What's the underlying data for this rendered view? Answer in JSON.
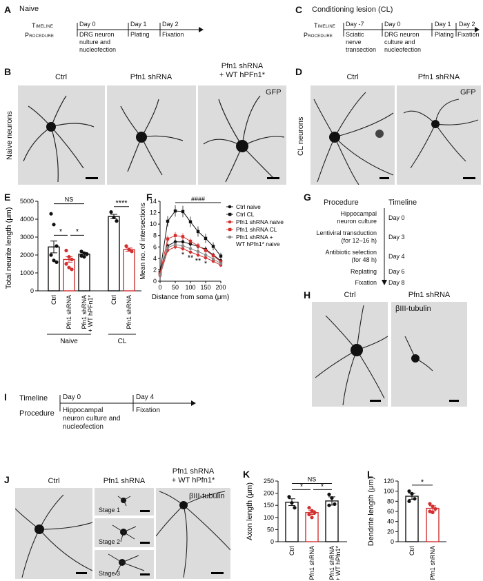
{
  "panels": {
    "A": {
      "letter": "A",
      "title": "Naive",
      "timeline_label": "Timeline",
      "procedure_label": "Procedure",
      "days": [
        "Day 0",
        "Day 1",
        "Day 2"
      ],
      "procedures": [
        "DRG neuron\nnulture and\nnucleofection",
        "Plating",
        "Fixation"
      ]
    },
    "B": {
      "letter": "B",
      "row_label": "Naive neurons",
      "cols": [
        "Ctrl",
        "Pfn1 shRNA",
        "Pfn1 shRNA\n+ WT hPFn1*"
      ],
      "stain": "GFP"
    },
    "C": {
      "letter": "C",
      "title": "Conditioning lesion (CL)",
      "timeline_label": "Timeline",
      "procedure_label": "Procedure",
      "days": [
        "Day -7",
        "Day 0",
        "Day 1",
        "Day 2"
      ],
      "procedures": [
        "Sciatic\nnerve\ntransection",
        "DRG neuron\nculture and\nnucleofection",
        "Plating",
        "Fixation"
      ]
    },
    "D": {
      "letter": "D",
      "row_label": "CL neurons",
      "cols": [
        "Ctrl",
        "Pfn1 shRNA"
      ],
      "stain": "GFP"
    },
    "E": {
      "letter": "E",
      "ylabel": "Total neurite length (μm)",
      "groups": [
        "Naive",
        "CL"
      ],
      "sig": [
        "NS",
        "*",
        "*",
        "****"
      ]
    },
    "F": {
      "letter": "F",
      "ylabel": "Mean no. of intersections",
      "xlabel": "Distance from soma (μm)",
      "sig_top": "####",
      "stars": [
        "*",
        "**",
        "**",
        "*"
      ]
    },
    "G": {
      "letter": "G",
      "head_procedure": "Procedure",
      "head_timeline": "Timeline",
      "steps": [
        {
          "procedure": "Hippocampal\nneuron culture",
          "timeline": "Day 0"
        },
        {
          "procedure": "Lentiviral transduction\n(for 12–16 h)",
          "timeline": "Day 3"
        },
        {
          "procedure": "Antibiotic selection\n(for 48 h)",
          "timeline": "Day 4"
        },
        {
          "procedure": "Replating",
          "timeline": "Day 6"
        },
        {
          "procedure": "Fixation",
          "timeline": "Day 8"
        }
      ]
    },
    "H": {
      "letter": "H",
      "cols": [
        "Ctrl",
        "Pfn1 shRNA"
      ],
      "stain": "βIII-tubulin"
    },
    "I": {
      "letter": "I",
      "timeline_label": "Timeline",
      "procedure_label": "Procedure",
      "days": [
        "Day 0",
        "Day 4"
      ],
      "procedures": [
        "Hippocampal\nneuron culture and\nnucleofection",
        "Fixation"
      ]
    },
    "J": {
      "letter": "J",
      "cols": [
        "Ctrl",
        "Pfn1 shRNA",
        "Pfn1 shRNA\n+ WT hPfn1*"
      ],
      "stages": [
        "Stage 1",
        "Stage 2",
        "Stage 3"
      ],
      "stain": "βIII-tubulin"
    },
    "K": {
      "letter": "K",
      "ylabel": "Axon length (μm)",
      "sig": [
        "NS",
        "*",
        "*"
      ]
    },
    "L": {
      "letter": "L",
      "ylabel": "Dendrite length (μm)",
      "sig": [
        "*"
      ]
    }
  },
  "colors": {
    "ctrl": "#111111",
    "pfn1": "#d32f2f",
    "rescue": "#777777"
  },
  "chart_data": [
    {
      "type": "bar",
      "id": "E",
      "categories": [
        "Ctrl",
        "Pfn1 shRNA",
        "Pfn1 shRNA\n+ WT hPFn1*",
        "Ctrl",
        "Pfn1 shRNA"
      ],
      "values": [
        2450,
        1750,
        2050,
        4150,
        2300
      ],
      "errors": [
        330,
        150,
        90,
        120,
        90
      ],
      "points": [
        [
          4300,
          3700,
          2500,
          2000,
          1700,
          1600
        ],
        [
          2250,
          1900,
          1750,
          1500,
          1300,
          1200
        ],
        [
          2200,
          2100,
          2050,
          1950,
          1900
        ],
        [
          4400,
          4100,
          3900
        ],
        [
          2500,
          2300,
          2200
        ]
      ],
      "bar_colors": [
        "#111111",
        "#d32f2f",
        "#111111",
        "#111111",
        "#d32f2f"
      ],
      "ylim": [
        0,
        5000
      ],
      "yticks": [
        0,
        1000,
        2000,
        3000,
        4000,
        5000
      ]
    },
    {
      "type": "line",
      "id": "F",
      "x": [
        0,
        25,
        50,
        75,
        100,
        125,
        150,
        175,
        200
      ],
      "xticks": [
        0,
        50,
        100,
        150,
        200
      ],
      "yticks": [
        0,
        2,
        4,
        6,
        8,
        10,
        12,
        14
      ],
      "xlim": [
        0,
        200
      ],
      "ylim": [
        0,
        14
      ],
      "series": [
        {
          "name": "Ctrl naive",
          "color": "#111111",
          "marker": "circle",
          "values": [
            1.2,
            6.2,
            6.9,
            6.9,
            6.5,
            6.1,
            5.6,
            4.6,
            3.6
          ],
          "errors": [
            0.2,
            0.5,
            0.6,
            0.6,
            0.5,
            0.5,
            0.5,
            0.4,
            0.4
          ]
        },
        {
          "name": "Ctrl CL",
          "color": "#111111",
          "marker": "square",
          "values": [
            1.6,
            10.5,
            12.3,
            12.2,
            10.4,
            8.7,
            7.5,
            6.1,
            4.4
          ],
          "errors": [
            0.3,
            0.9,
            1.0,
            1.0,
            0.9,
            0.9,
            0.8,
            0.7,
            0.6
          ]
        },
        {
          "name": "Pfn1 shRNA naive",
          "color": "#d32f2f",
          "marker": "circle",
          "values": [
            1.0,
            5.4,
            6.0,
            5.7,
            5.1,
            4.6,
            4.1,
            3.5,
            2.8
          ],
          "errors": [
            0.2,
            0.4,
            0.4,
            0.4,
            0.4,
            0.4,
            0.4,
            0.3,
            0.3
          ]
        },
        {
          "name": "Pfn1 shRNA CL",
          "color": "#d32f2f",
          "marker": "square",
          "values": [
            1.4,
            7.4,
            8.0,
            7.8,
            7.0,
            6.2,
            5.4,
            4.5,
            3.4
          ],
          "errors": [
            0.3,
            0.6,
            0.6,
            0.6,
            0.5,
            0.5,
            0.5,
            0.4,
            0.4
          ]
        },
        {
          "name": "Pfn1 shRNA +\nWT hPfn1* naive",
          "color": "#888888",
          "marker": "circle",
          "values": [
            1.1,
            5.9,
            6.4,
            6.2,
            5.7,
            5.2,
            4.6,
            3.9,
            3.1
          ],
          "errors": [
            0.2,
            0.4,
            0.4,
            0.4,
            0.4,
            0.4,
            0.4,
            0.3,
            0.3
          ]
        }
      ]
    },
    {
      "type": "bar",
      "id": "K",
      "categories": [
        "Ctrl",
        "Pfn1 shRNA",
        "Pfn1 shRNA\n+ WT hPfn1*"
      ],
      "values": [
        163,
        120,
        168
      ],
      "errors": [
        14,
        8,
        17
      ],
      "points": [
        [
          185,
          160,
          140
        ],
        [
          140,
          128,
          120,
          112,
          100
        ],
        [
          195,
          180,
          155,
          150
        ]
      ],
      "bar_colors": [
        "#111111",
        "#d32f2f",
        "#111111"
      ],
      "ylim": [
        0,
        250
      ],
      "yticks": [
        0,
        50,
        100,
        150,
        200,
        250
      ]
    },
    {
      "type": "bar",
      "id": "L",
      "categories": [
        "Ctrl",
        "Pfn1 shRNA"
      ],
      "values": [
        90,
        66
      ],
      "errors": [
        6,
        5
      ],
      "points": [
        [
          100,
          95,
          85,
          80
        ],
        [
          75,
          70,
          65,
          60,
          58
        ]
      ],
      "bar_colors": [
        "#111111",
        "#d32f2f"
      ],
      "ylim": [
        0,
        120
      ],
      "yticks": [
        0,
        20,
        40,
        60,
        80,
        100,
        120
      ]
    }
  ]
}
